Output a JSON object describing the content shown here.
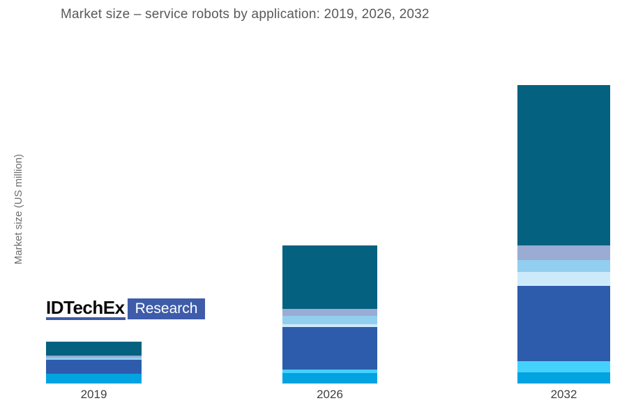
{
  "title": "Market size – service robots by application: 2019, 2026, 2032",
  "logo": {
    "brand": "IDTechEx",
    "division": "Research",
    "accent_color": "#3E5CA9"
  },
  "colors": {
    "title_text": "#58595B",
    "y_axis_label": "#6D6E71",
    "x_tick_labels": "#3F3F3F",
    "background": "#FFFFFF"
  },
  "chart_data": {
    "type": "bar",
    "stacked": true,
    "title": "Market size – service robots by application: 2019, 2026, 2032",
    "xlabel": "",
    "ylabel": "Market size (US million)",
    "categories": [
      "2019",
      "2026",
      "2032"
    ],
    "series": [
      {
        "name": "cyan",
        "color": "#03A3E2",
        "values": [
          14,
          15,
          16
        ]
      },
      {
        "name": "bright-cyan",
        "color": "#44D2FC",
        "values": [
          0,
          5,
          16
        ]
      },
      {
        "name": "royal-blue",
        "color": "#2E5CAC",
        "values": [
          20,
          61,
          108
        ]
      },
      {
        "name": "pale-blue",
        "color": "#CDEAFB",
        "values": [
          0,
          4,
          20
        ]
      },
      {
        "name": "sky-blue",
        "color": "#92CEEF",
        "values": [
          3,
          12,
          17
        ]
      },
      {
        "name": "periwinkle",
        "color": "#9AACD4",
        "values": [
          3,
          10,
          21
        ]
      },
      {
        "name": "dark-teal",
        "color": "#04617F",
        "values": [
          20,
          91,
          230
        ]
      }
    ],
    "stack_totals": [
      60,
      198,
      428
    ],
    "value_units": "relative height (no numeric y-axis ticks shown)",
    "y_axis_ticks": "none",
    "grid": false,
    "legend": "none"
  }
}
